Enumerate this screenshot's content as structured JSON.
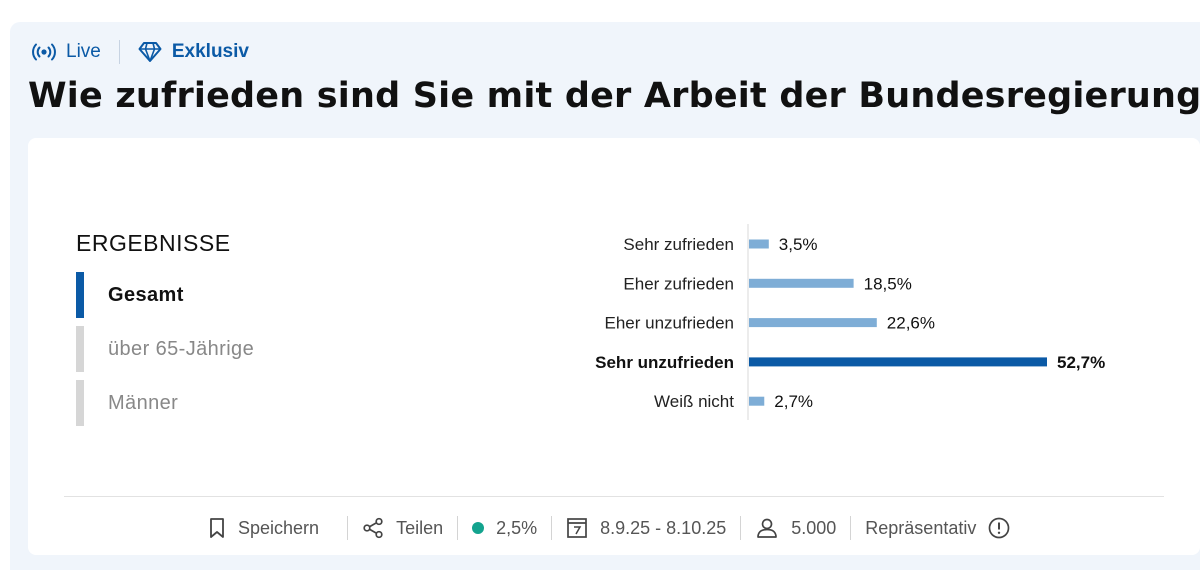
{
  "header": {
    "live_label": "Live",
    "exklusiv_label": "Exklusiv",
    "question": "Wie zufrieden sind Sie mit der Arbeit der Bundesregierung?"
  },
  "results": {
    "title": "ERGEBNISSE",
    "tabs": [
      {
        "label": "Gesamt",
        "active": true
      },
      {
        "label": "über 65-Jährige",
        "active": false
      },
      {
        "label": "Männer",
        "active": false
      }
    ]
  },
  "chart_data": {
    "type": "bar",
    "orientation": "horizontal",
    "categories": [
      "Sehr zufrieden",
      "Eher zufrieden",
      "Eher unzufrieden",
      "Sehr unzufrieden",
      "Weiß nicht"
    ],
    "values": [
      3.5,
      18.5,
      22.6,
      52.7,
      2.7
    ],
    "value_labels": [
      "3,5%",
      "18,5%",
      "22,6%",
      "52,7%",
      "2,7%"
    ],
    "highlight_index": 3,
    "colors": {
      "default": "#7eadd6",
      "highlight": "#0b5aa6"
    },
    "xlim": [
      0,
      60
    ],
    "title": "",
    "xlabel": "",
    "ylabel": ""
  },
  "footer": {
    "save_label": "Speichern",
    "share_label": "Teilen",
    "margin_of_error": "2,5%",
    "date_range": "8.9.25 - 8.10.25",
    "respondents": "5.000",
    "representative_label": "Repräsentativ"
  }
}
